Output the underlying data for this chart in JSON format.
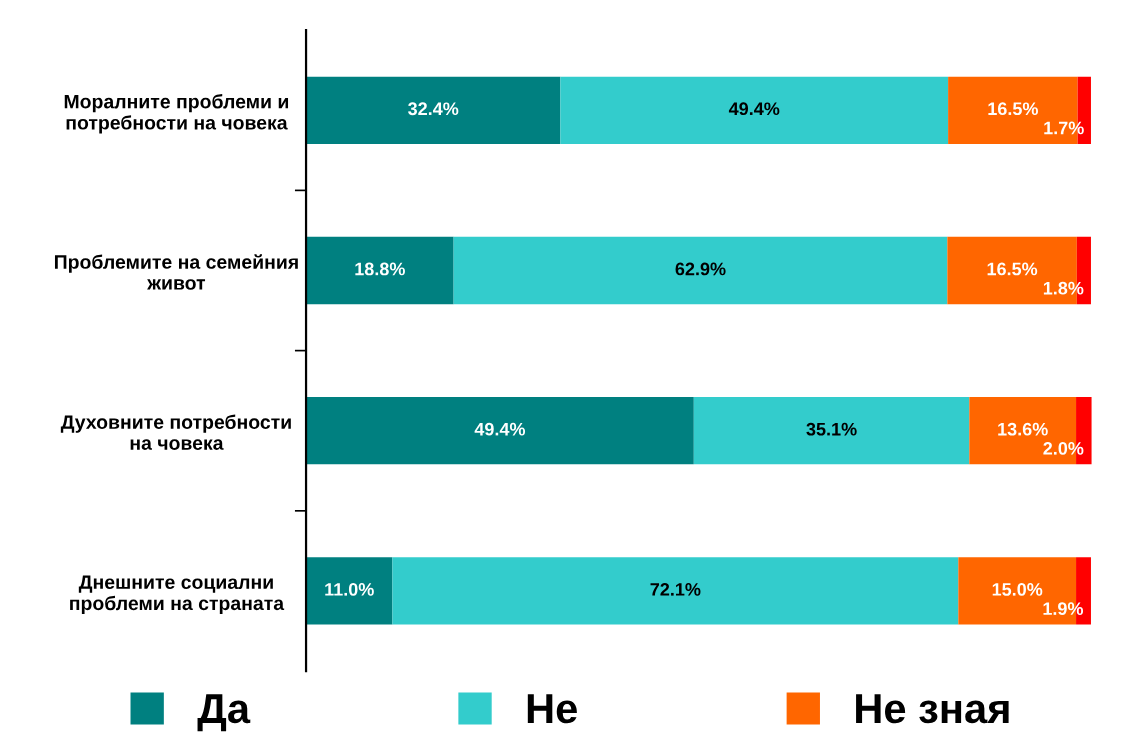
{
  "chart_data": {
    "type": "bar",
    "orientation": "horizontal",
    "stacked": true,
    "legend": "bottom",
    "grid": false,
    "categories": [
      "Моралните проблеми и\nпотребности на човека",
      "Проблемите на семейния\nживот",
      "Духовните потребности\nна човека",
      "Днешните социални\nпроблеми на страната"
    ],
    "series": [
      {
        "name": "Да",
        "color": "#008080",
        "values": [
          32.4,
          18.8,
          49.4,
          11.0
        ],
        "value_labels": [
          "32.4%",
          "18.8%",
          "49.4%",
          "11.0%"
        ]
      },
      {
        "name": "Не",
        "color": "#33cccc",
        "values": [
          49.4,
          62.9,
          35.1,
          72.1
        ],
        "value_labels": [
          "49.4%",
          "62.9%",
          "35.1%",
          "72.1%"
        ]
      },
      {
        "name": "Не зная",
        "color": "#ff6600",
        "values": [
          16.5,
          16.5,
          13.6,
          15.0
        ],
        "value_labels": [
          "16.5%",
          "16.5%",
          "13.6%",
          "15.0%"
        ]
      },
      {
        "color": "#ff0000",
        "values": [
          1.7,
          1.8,
          2.0,
          1.9
        ],
        "value_labels": [
          "1.7%",
          "1.8%",
          "2.0%",
          "1.9%"
        ]
      }
    ]
  }
}
